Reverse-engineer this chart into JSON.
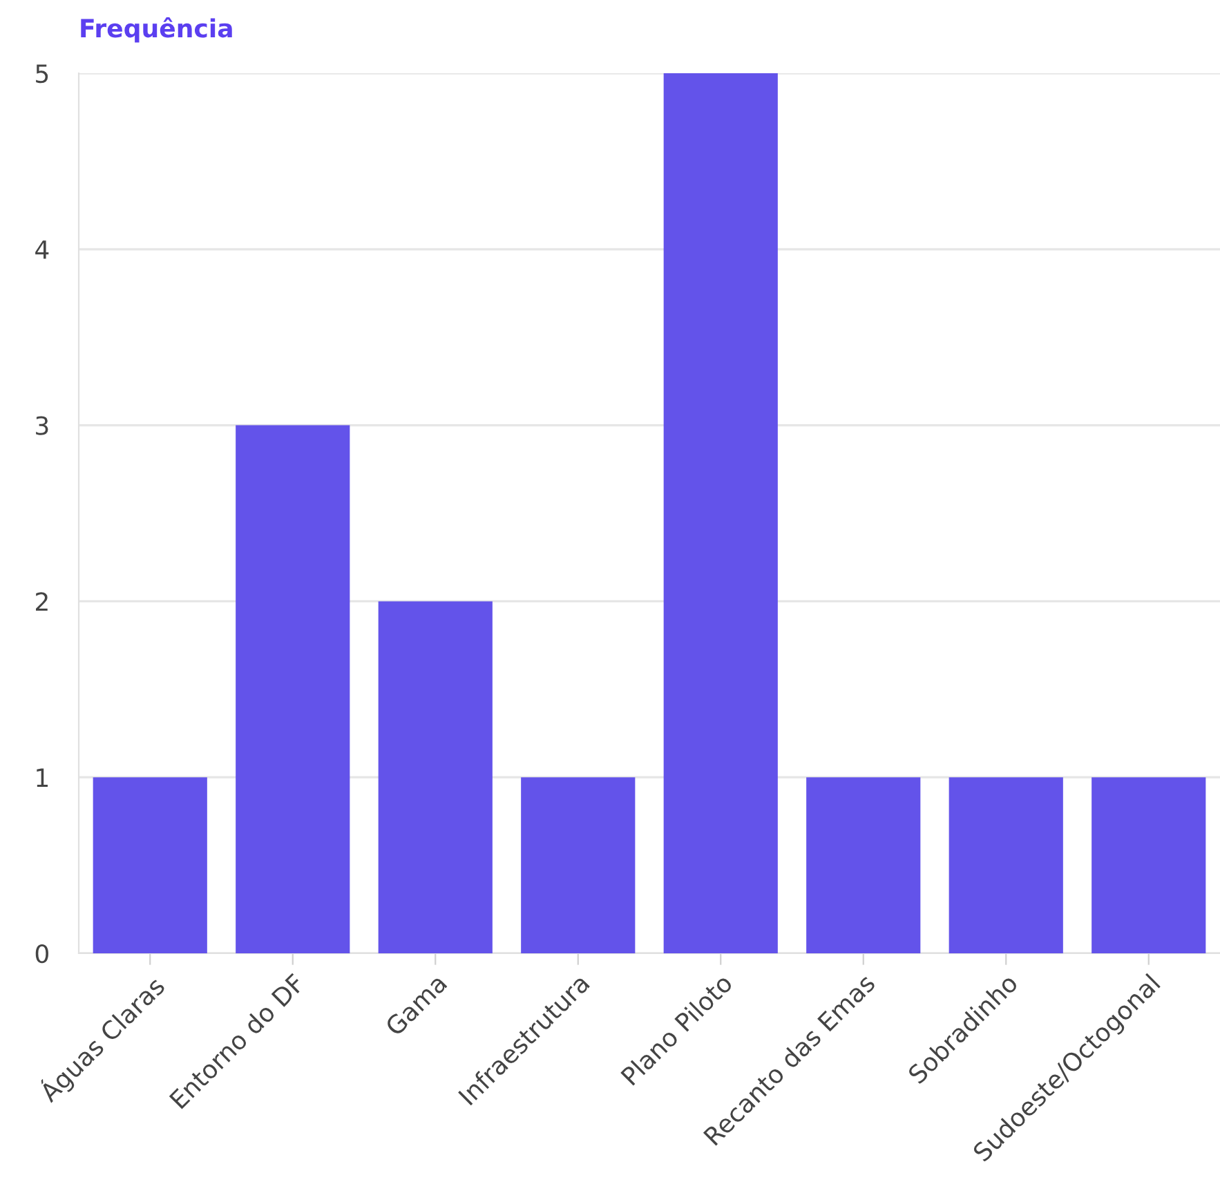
{
  "chart_data": {
    "type": "bar",
    "ylabel": "Frequência",
    "categories": [
      "Águas Claras",
      "Entorno do DF",
      "Gama",
      "Infraestrutura",
      "Plano Piloto",
      "Recanto das Emas",
      "Sobradinho",
      "Sudoeste/Octogonal"
    ],
    "values": [
      1,
      3,
      2,
      1,
      5,
      1,
      1,
      1
    ],
    "color": "#6353ea",
    "ylim": [
      0,
      5
    ],
    "yticks": [
      0,
      1,
      2,
      3,
      4,
      5
    ],
    "grid": "y"
  }
}
